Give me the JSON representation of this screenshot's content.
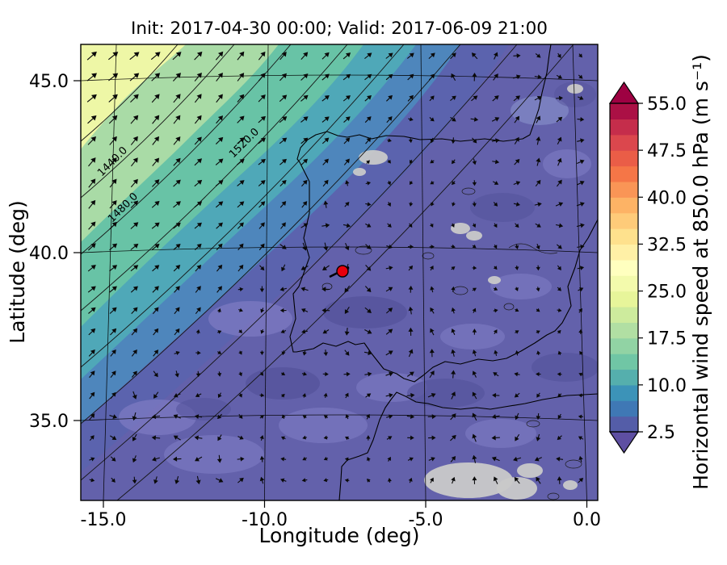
{
  "title": "Init: 2017-04-30 00:00; Valid: 2017-06-09 21:00",
  "axes": {
    "xlabel": "Longitude (deg)",
    "ylabel": "Latitude (deg)",
    "xticks": [
      "-15.0",
      "-10.0",
      "-5.0",
      "0.0"
    ],
    "yticks": [
      "45.0",
      "40.0",
      "35.0"
    ]
  },
  "colorbar": {
    "label": "Horizontal wind speed at 850.0 hPa (m s⁻¹)",
    "ticks": [
      "2.5",
      "10.0",
      "17.5",
      "25.0",
      "32.5",
      "40.0",
      "47.5",
      "55.0"
    ]
  },
  "contour_labels": [
    "1440.0",
    "1480.0",
    "1520.0"
  ],
  "marker": {
    "color": "#e8000b"
  },
  "chart_data": {
    "type": "heatmap",
    "title": "Init: 2017-04-30 00:00; Valid: 2017-06-09 21:00",
    "xlabel": "Longitude (deg)",
    "ylabel": "Latitude (deg)",
    "xlim": [
      -15.7,
      0.3
    ],
    "ylim": [
      32.6,
      46.1
    ],
    "xticks": [
      -15.0,
      -10.0,
      -5.0,
      0.0
    ],
    "yticks": [
      45.0,
      40.0,
      35.0
    ],
    "grid": true,
    "colorbar": {
      "label": "Horizontal wind speed at 850.0 hPa (m s⁻¹)",
      "ticks": [
        2.5,
        10.0,
        17.5,
        25.0,
        32.5,
        40.0,
        47.5,
        55.0
      ],
      "range": [
        2.5,
        55.0
      ],
      "extend": "both",
      "colormap_stops": [
        "#5e4fa2",
        "#3288bd",
        "#66c2a5",
        "#abdda4",
        "#e6f598",
        "#ffffbf",
        "#fee08b",
        "#fdae61",
        "#f46d43",
        "#d53e4f",
        "#9e0142"
      ]
    },
    "geopotential_contour_labels_m": [
      1440.0,
      1480.0,
      1520.0
    ],
    "marker_lonlat": [
      -7.6,
      39.4
    ],
    "field_notes": "Wind speed maximum (about 15-25 m/s) in the northwest Atlantic corner of the map, decreasing southeastward to about 2.5-7.5 m/s over Iberia and North Africa; quiver arrows show strong southwest-to-northeast flow in the northwest and weak variable flow elsewhere; red marker plotted near 7.6W, 39.4N over central Portugal/Spain border."
  }
}
